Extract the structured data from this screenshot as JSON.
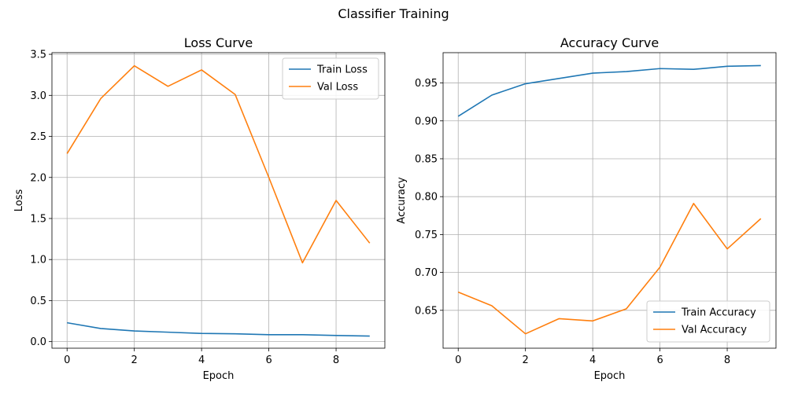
{
  "figure": {
    "suptitle": "Classifier Training"
  },
  "colors": {
    "train": "#1f77b4",
    "val": "#ff7f0e",
    "grid": "#b0b0b0",
    "spine": "#000000"
  },
  "chart_data": [
    {
      "type": "line",
      "title": "Loss Curve",
      "xlabel": "Epoch",
      "ylabel": "Loss",
      "x": [
        0,
        1,
        2,
        3,
        4,
        5,
        6,
        7,
        8,
        9
      ],
      "xlim": [
        -0.45,
        9.45
      ],
      "ylim": [
        -0.08,
        3.52
      ],
      "xticks": [
        0,
        2,
        4,
        6,
        8
      ],
      "xtick_labels": [
        "0",
        "2",
        "4",
        "6",
        "8"
      ],
      "yticks": [
        0.0,
        0.5,
        1.0,
        1.5,
        2.0,
        2.5,
        3.0,
        3.5
      ],
      "ytick_labels": [
        "0.0",
        "0.5",
        "1.0",
        "1.5",
        "2.0",
        "2.5",
        "3.0",
        "3.5"
      ],
      "grid": true,
      "legend_position": "upper-right",
      "series": [
        {
          "name": "Train Loss",
          "values": [
            0.23,
            0.16,
            0.13,
            0.115,
            0.1,
            0.095,
            0.085,
            0.085,
            0.075,
            0.068
          ]
        },
        {
          "name": "Val Loss",
          "values": [
            2.29,
            2.96,
            3.36,
            3.11,
            3.31,
            3.01,
            2.0,
            0.96,
            1.72,
            1.2
          ]
        }
      ]
    },
    {
      "type": "line",
      "title": "Accuracy Curve",
      "xlabel": "Epoch",
      "ylabel": "Accuracy",
      "x": [
        0,
        1,
        2,
        3,
        4,
        5,
        6,
        7,
        8,
        9
      ],
      "xlim": [
        -0.45,
        9.45
      ],
      "ylim": [
        0.6,
        0.99
      ],
      "xticks": [
        0,
        2,
        4,
        6,
        8
      ],
      "xtick_labels": [
        "0",
        "2",
        "4",
        "6",
        "8"
      ],
      "yticks": [
        0.65,
        0.7,
        0.75,
        0.8,
        0.85,
        0.9,
        0.95
      ],
      "ytick_labels": [
        "0.65",
        "0.70",
        "0.75",
        "0.80",
        "0.85",
        "0.90",
        "0.95"
      ],
      "grid": true,
      "legend_position": "lower-right",
      "series": [
        {
          "name": "Train Accuracy",
          "values": [
            0.906,
            0.934,
            0.949,
            0.956,
            0.963,
            0.965,
            0.969,
            0.968,
            0.972,
            0.973
          ]
        },
        {
          "name": "Val Accuracy",
          "values": [
            0.674,
            0.656,
            0.619,
            0.639,
            0.636,
            0.652,
            0.707,
            0.791,
            0.731,
            0.771
          ]
        }
      ]
    }
  ]
}
